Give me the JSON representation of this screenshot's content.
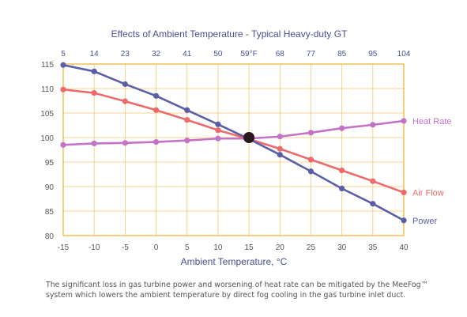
{
  "chart_data": {
    "type": "line",
    "title": "Effects of Ambient Temperature - Typical Heavy-duty GT",
    "xlabel": "Ambient Temperature, °C",
    "x": [
      -15,
      -10,
      -5,
      0,
      5,
      10,
      15,
      20,
      25,
      30,
      35,
      40
    ],
    "x_tick_labels": [
      "-15",
      "-10",
      "-5",
      "0",
      "5",
      "10",
      "15",
      "20",
      "25",
      "30",
      "35",
      "40"
    ],
    "xlim": [
      -15,
      40
    ],
    "top_axis_ticks": [
      "5",
      "14",
      "23",
      "32",
      "41",
      "50",
      "59°F",
      "68",
      "77",
      "85",
      "95",
      "104"
    ],
    "y_ticks": [
      "80",
      "85",
      "90",
      "95",
      "100",
      "105",
      "110",
      "115"
    ],
    "ylim": [
      80,
      115
    ],
    "grid": true,
    "reference_point": {
      "x": 15,
      "y": 100
    },
    "series": [
      {
        "name": "Heat Rate",
        "color": "#c472c8",
        "values": [
          98.5,
          98.8,
          98.9,
          99.1,
          99.4,
          99.8,
          99.8,
          100.2,
          101.0,
          101.9,
          102.6,
          103.4
        ]
      },
      {
        "name": "Air Flow",
        "color": "#ee6a6a",
        "values": [
          109.8,
          109.1,
          107.4,
          105.6,
          103.6,
          101.5,
          99.7,
          97.7,
          95.5,
          93.3,
          91.1,
          88.8
        ]
      },
      {
        "name": "Power",
        "color": "#5a5ea6",
        "values": [
          114.8,
          113.5,
          110.9,
          108.5,
          105.6,
          102.7,
          99.7,
          96.5,
          93.1,
          89.6,
          86.5,
          83.1
        ]
      }
    ]
  },
  "caption": {
    "line1": "The significant loss in gas turbine power and worsening of heat rate can be mitigated by the MeeFog™",
    "line2": "system which lowers the ambient temperature by direct fog cooling in the gas turbine inlet duct."
  },
  "colors": {
    "frame": "#f2b53a",
    "grid": "#f5c96a",
    "title": "#4a4f98",
    "reference_point": "#2a1820"
  }
}
